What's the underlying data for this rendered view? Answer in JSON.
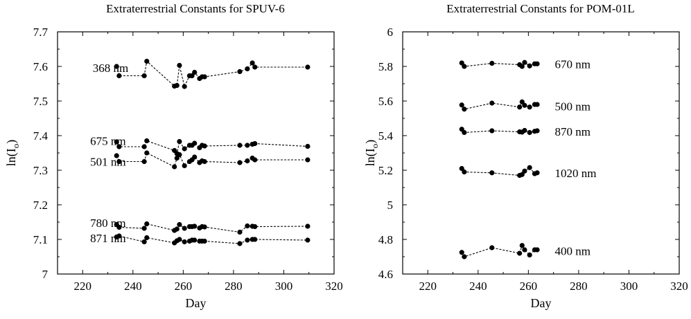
{
  "chart_data": [
    {
      "type": "scatter",
      "title": "Extraterrestrial Constants for SPUV-6",
      "xlabel": "Day",
      "ylabel_main": "ln(I",
      "ylabel_sub": "o",
      "ylabel_close": ")",
      "xlim": [
        210,
        320
      ],
      "ylim": [
        7.0,
        7.7
      ],
      "xticks": [
        "220",
        "240",
        "260",
        "280",
        "300",
        "320"
      ],
      "yticks": [
        "7",
        "7.1",
        "7.2",
        "7.3",
        "7.4",
        "7.5",
        "7.6",
        "7.7"
      ],
      "series": [
        {
          "name": "368 nm",
          "label_x": 224,
          "label_y": 7.596,
          "x": [
            233.5,
            234.5,
            244.5,
            245.5,
            256.5,
            257.5,
            258.5,
            260.5,
            262.5,
            263.5,
            264.5,
            266.5,
            267.5,
            268.5,
            282.5,
            285.5,
            287.5,
            288.5,
            309.5
          ],
          "values": [
            7.6,
            7.573,
            7.573,
            7.615,
            7.543,
            7.545,
            7.603,
            7.542,
            7.573,
            7.573,
            7.583,
            7.565,
            7.57,
            7.57,
            7.585,
            7.593,
            7.61,
            7.598,
            7.598
          ]
        },
        {
          "name": "675 nm",
          "label_x": 223,
          "label_y": 7.385,
          "x": [
            233.5,
            234.5,
            244.5,
            245.5,
            256.5,
            257.5,
            258.5,
            260.5,
            262.5,
            263.5,
            264.5,
            266.5,
            267.5,
            268.5,
            282.5,
            285.5,
            287.5,
            288.5,
            309.5
          ],
          "values": [
            7.382,
            7.368,
            7.368,
            7.385,
            7.357,
            7.348,
            7.383,
            7.362,
            7.372,
            7.372,
            7.378,
            7.365,
            7.372,
            7.37,
            7.372,
            7.372,
            7.375,
            7.377,
            7.369
          ]
        },
        {
          "name": "501 nm",
          "label_x": 223,
          "label_y": 7.325,
          "x": [
            233.5,
            234.5,
            244.5,
            245.5,
            256.5,
            257.5,
            258.5,
            260.5,
            262.5,
            263.5,
            264.5,
            266.5,
            267.5,
            268.5,
            282.5,
            285.5,
            287.5,
            288.5,
            309.5
          ],
          "values": [
            7.342,
            7.325,
            7.325,
            7.35,
            7.31,
            7.335,
            7.345,
            7.313,
            7.325,
            7.33,
            7.338,
            7.322,
            7.327,
            7.325,
            7.322,
            7.327,
            7.335,
            7.33,
            7.33
          ]
        },
        {
          "name": "780 nm",
          "label_x": 223,
          "label_y": 7.148,
          "x": [
            233.5,
            234.5,
            244.5,
            245.5,
            256.5,
            257.5,
            258.5,
            260.5,
            262.5,
            263.5,
            264.5,
            266.5,
            267.5,
            268.5,
            282.5,
            285.5,
            287.5,
            288.5,
            309.5
          ],
          "values": [
            7.143,
            7.135,
            7.132,
            7.145,
            7.126,
            7.13,
            7.143,
            7.132,
            7.137,
            7.137,
            7.138,
            7.133,
            7.137,
            7.136,
            7.121,
            7.139,
            7.138,
            7.137,
            7.138
          ]
        },
        {
          "name": "871 nm",
          "label_x": 223,
          "label_y": 7.104,
          "x": [
            233.5,
            234.5,
            244.5,
            245.5,
            256.5,
            257.5,
            258.5,
            260.5,
            262.5,
            263.5,
            264.5,
            266.5,
            267.5,
            268.5,
            282.5,
            285.5,
            287.5,
            288.5,
            309.5
          ],
          "values": [
            7.107,
            7.11,
            7.093,
            7.105,
            7.09,
            7.096,
            7.1,
            7.093,
            7.095,
            7.098,
            7.098,
            7.095,
            7.095,
            7.095,
            7.088,
            7.098,
            7.1,
            7.1,
            7.098
          ]
        }
      ]
    },
    {
      "type": "scatter",
      "title": "Extraterrestrial Constants for POM-01L",
      "xlabel": "Day",
      "ylabel_main": "ln(I",
      "ylabel_sub": "o",
      "ylabel_close": ")",
      "xlim": [
        210,
        320
      ],
      "ylim": [
        4.6,
        6.0
      ],
      "xticks": [
        "220",
        "240",
        "260",
        "280",
        "300",
        "320"
      ],
      "yticks": [
        "4.6",
        "4.8",
        "5",
        "5.2",
        "5.4",
        "5.6",
        "5.8",
        "6"
      ],
      "series": [
        {
          "name": "670 nm",
          "label_x": 270.5,
          "label_y": 5.815,
          "x": [
            233.5,
            234.5,
            245.5,
            256.5,
            257.5,
            258.5,
            260.5,
            262.5,
            263.5
          ],
          "values": [
            5.82,
            5.8,
            5.818,
            5.81,
            5.8,
            5.823,
            5.803,
            5.815,
            5.815
          ]
        },
        {
          "name": "500 nm",
          "label_x": 270.5,
          "label_y": 5.57,
          "x": [
            233.5,
            234.5,
            245.5,
            256.5,
            257.5,
            258.5,
            260.5,
            262.5,
            263.5
          ],
          "values": [
            5.577,
            5.553,
            5.588,
            5.565,
            5.595,
            5.575,
            5.565,
            5.58,
            5.58
          ]
        },
        {
          "name": "870 nm",
          "label_x": 270.5,
          "label_y": 5.425,
          "x": [
            233.5,
            234.5,
            245.5,
            256.5,
            257.5,
            258.5,
            260.5,
            262.5,
            263.5
          ],
          "values": [
            5.437,
            5.418,
            5.428,
            5.422,
            5.42,
            5.43,
            5.418,
            5.425,
            5.428
          ]
        },
        {
          "name": "1020 nm",
          "label_x": 270.5,
          "label_y": 5.185,
          "x": [
            233.5,
            234.5,
            245.5,
            256.5,
            257.5,
            258.5,
            260.5,
            262.5,
            263.5
          ],
          "values": [
            5.21,
            5.19,
            5.185,
            5.17,
            5.175,
            5.195,
            5.215,
            5.18,
            5.185
          ]
        },
        {
          "name": "400 nm",
          "label_x": 270.5,
          "label_y": 4.735,
          "x": [
            233.5,
            234.5,
            245.5,
            256.5,
            257.5,
            258.5,
            260.5,
            262.5,
            263.5
          ],
          "values": [
            4.725,
            4.7,
            4.752,
            4.72,
            4.765,
            4.74,
            4.71,
            4.74,
            4.74
          ]
        }
      ]
    }
  ]
}
